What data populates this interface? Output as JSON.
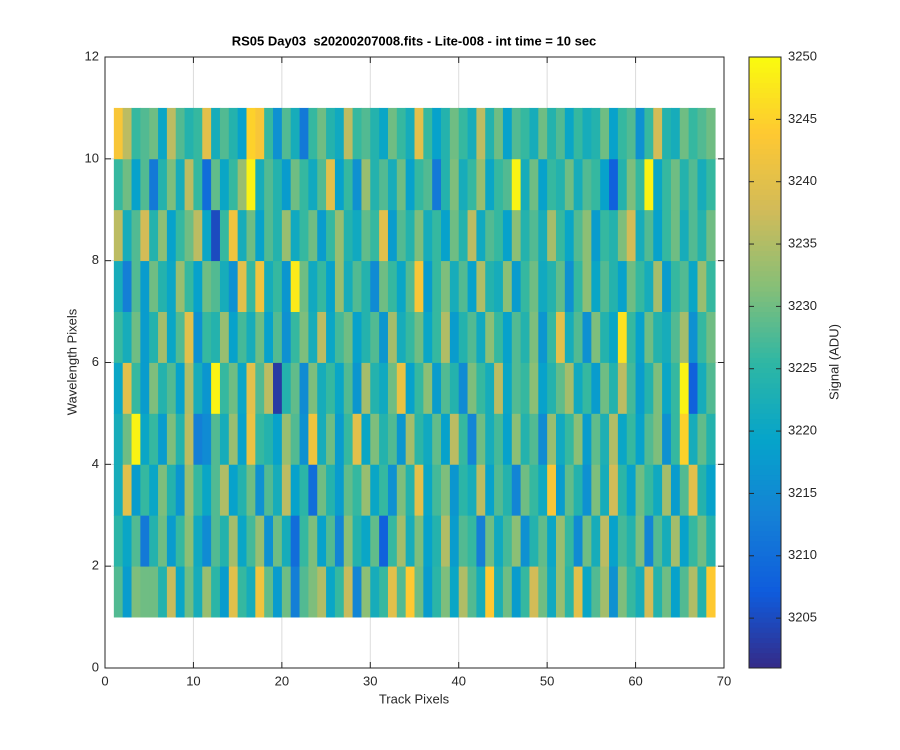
{
  "chart_data": {
    "type": "heatmap",
    "title": "RS05 Day03  s20200207008.fits - Lite-008 - int time = 10 sec",
    "xlabel": "Track Pixels",
    "ylabel": "Wavelength Pixels",
    "colorbar_label": "Signal (ADU)",
    "xlim": [
      0,
      70
    ],
    "xticks": [
      0,
      10,
      20,
      30,
      40,
      50,
      60,
      70
    ],
    "ylim": [
      0,
      12
    ],
    "yticks": [
      0,
      2,
      4,
      6,
      8,
      10,
      12
    ],
    "grid": true,
    "clim": [
      3201,
      3250
    ],
    "cticks": [
      3205,
      3210,
      3215,
      3220,
      3225,
      3230,
      3235,
      3240,
      3245,
      3250
    ],
    "colormap": [
      "#352a87",
      "#0f5cdd",
      "#1481d6",
      "#06a4ca",
      "#2eb7a4",
      "#87bf77",
      "#d1bb59",
      "#fec832",
      "#f9fb0e"
    ],
    "xbins": [
      1,
      2,
      3,
      4,
      5,
      6,
      7,
      8,
      9,
      10,
      11,
      12,
      13,
      14,
      15,
      16,
      17,
      18,
      19,
      20,
      21,
      22,
      23,
      24,
      25,
      26,
      27,
      28,
      29,
      30,
      31,
      32,
      33,
      34,
      35,
      36,
      37,
      38,
      39,
      40,
      41,
      42,
      43,
      44,
      45,
      46,
      47,
      48,
      49,
      50,
      51,
      52,
      53,
      54,
      55,
      56,
      57,
      58,
      59,
      60,
      61,
      62,
      63,
      64,
      65,
      66,
      67,
      68,
      69
    ],
    "ybins": [
      1,
      2,
      3,
      4,
      5,
      6,
      7,
      8,
      9,
      10,
      11
    ],
    "values": [
      [
        3228,
        3218,
        3231,
        3230,
        3230,
        3224,
        3237,
        3220,
        3230,
        3222,
        3233,
        3225,
        3218,
        3240,
        3226,
        3222,
        3242,
        3229,
        3218,
        3230,
        3213,
        3228,
        3231,
        3235,
        3220,
        3226,
        3237,
        3214,
        3232,
        3222,
        3226,
        3240,
        3228,
        3244,
        3230,
        3218,
        3225,
        3231,
        3220,
        3235,
        3228,
        3222,
        3244,
        3223,
        3230,
        3218,
        3226,
        3238,
        3230,
        3221,
        3233,
        3225,
        3240,
        3220,
        3228,
        3234,
        3216,
        3231,
        3226,
        3222,
        3238,
        3224,
        3230,
        3219,
        3228,
        3235,
        3224,
        3244
      ],
      [
        3225,
        3220,
        3228,
        3212,
        3224,
        3230,
        3218,
        3226,
        3232,
        3221,
        3215,
        3228,
        3224,
        3234,
        3220,
        3227,
        3233,
        3216,
        3230,
        3222,
        3210,
        3226,
        3231,
        3219,
        3228,
        3214,
        3232,
        3224,
        3220,
        3229,
        3208,
        3226,
        3234,
        3222,
        3231,
        3219,
        3224,
        3235,
        3218,
        3228,
        3226,
        3213,
        3230,
        3221,
        3227,
        3232,
        3216,
        3224,
        3229,
        3220,
        3233,
        3226,
        3215,
        3230,
        3222,
        3236,
        3219,
        3227,
        3224,
        3231,
        3214,
        3228,
        3222,
        3234,
        3219,
        3226,
        3230,
        3224
      ],
      [
        3222,
        3240,
        3218,
        3226,
        3220,
        3231,
        3224,
        3217,
        3233,
        3226,
        3220,
        3228,
        3235,
        3219,
        3224,
        3230,
        3216,
        3228,
        3222,
        3236,
        3219,
        3225,
        3210,
        3230,
        3224,
        3218,
        3229,
        3226,
        3233,
        3220,
        3226,
        3216,
        3231,
        3224,
        3240,
        3220,
        3227,
        3231,
        3217,
        3225,
        3222,
        3236,
        3219,
        3228,
        3224,
        3214,
        3230,
        3226,
        3221,
        3243,
        3218,
        3229,
        3224,
        3216,
        3231,
        3222,
        3238,
        3225,
        3219,
        3230,
        3226,
        3221,
        3234,
        3218,
        3228,
        3240,
        3224,
        3219
      ],
      [
        3222,
        3230,
        3249,
        3220,
        3226,
        3218,
        3231,
        3224,
        3236,
        3213,
        3215,
        3228,
        3222,
        3233,
        3219,
        3241,
        3226,
        3224,
        3219,
        3233,
        3228,
        3216,
        3242,
        3222,
        3230,
        3218,
        3226,
        3240,
        3220,
        3231,
        3224,
        3228,
        3217,
        3234,
        3225,
        3221,
        3229,
        3219,
        3236,
        3226,
        3214,
        3230,
        3222,
        3227,
        3219,
        3232,
        3224,
        3228,
        3215,
        3233,
        3221,
        3226,
        3232,
        3218,
        3229,
        3223,
        3235,
        3220,
        3226,
        3219,
        3228,
        3231,
        3216,
        3226,
        3245,
        3222,
        3229,
        3224
      ],
      [
        3220,
        3240,
        3226,
        3218,
        3231,
        3224,
        3228,
        3219,
        3235,
        3222,
        3217,
        3249,
        3226,
        3230,
        3220,
        3240,
        3228,
        3236,
        3203,
        3224,
        3229,
        3215,
        3231,
        3222,
        3226,
        3220,
        3228,
        3217,
        3234,
        3224,
        3221,
        3230,
        3241,
        3219,
        3226,
        3232,
        3218,
        3228,
        3224,
        3215,
        3231,
        3226,
        3222,
        3236,
        3220,
        3228,
        3226,
        3232,
        3219,
        3224,
        3229,
        3234,
        3221,
        3226,
        3218,
        3230,
        3224,
        3236,
        3227,
        3218,
        3224,
        3231,
        3220,
        3226,
        3249,
        3208,
        3222,
        3228
      ],
      [
        3226,
        3222,
        3230,
        3218,
        3224,
        3234,
        3220,
        3228,
        3240,
        3216,
        3226,
        3224,
        3233,
        3219,
        3227,
        3222,
        3230,
        3219,
        3228,
        3216,
        3226,
        3231,
        3222,
        3236,
        3220,
        3227,
        3230,
        3219,
        3224,
        3228,
        3217,
        3234,
        3222,
        3226,
        3230,
        3220,
        3226,
        3235,
        3218,
        3224,
        3228,
        3221,
        3232,
        3226,
        3219,
        3228,
        3224,
        3231,
        3217,
        3226,
        3240,
        3222,
        3228,
        3216,
        3231,
        3224,
        3220,
        3247,
        3226,
        3219,
        3230,
        3224,
        3222,
        3228,
        3234,
        3216,
        3226,
        3230
      ],
      [
        3222,
        3213,
        3228,
        3218,
        3230,
        3224,
        3220,
        3233,
        3226,
        3219,
        3230,
        3228,
        3222,
        3216,
        3240,
        3226,
        3242,
        3222,
        3226,
        3217,
        3248,
        3230,
        3221,
        3226,
        3219,
        3233,
        3222,
        3228,
        3224,
        3215,
        3230,
        3226,
        3220,
        3228,
        3243,
        3218,
        3226,
        3231,
        3222,
        3228,
        3219,
        3235,
        3224,
        3222,
        3232,
        3218,
        3226,
        3230,
        3221,
        3224,
        3229,
        3216,
        3226,
        3232,
        3220,
        3228,
        3224,
        3219,
        3230,
        3226,
        3222,
        3234,
        3218,
        3226,
        3228,
        3220,
        3233,
        3226
      ],
      [
        3236,
        3222,
        3228,
        3238,
        3224,
        3232,
        3219,
        3226,
        3230,
        3236,
        3220,
        3205,
        3226,
        3242,
        3222,
        3230,
        3219,
        3228,
        3224,
        3233,
        3221,
        3226,
        3230,
        3218,
        3226,
        3233,
        3224,
        3221,
        3229,
        3226,
        3240,
        3218,
        3228,
        3224,
        3231,
        3222,
        3226,
        3219,
        3230,
        3224,
        3236,
        3221,
        3228,
        3226,
        3219,
        3232,
        3224,
        3228,
        3222,
        3234,
        3226,
        3220,
        3228,
        3232,
        3218,
        3226,
        3224,
        3231,
        3238,
        3222,
        3228,
        3219,
        3226,
        3230,
        3222,
        3228,
        3224,
        3230
      ],
      [
        3226,
        3230,
        3219,
        3228,
        3212,
        3224,
        3231,
        3222,
        3236,
        3226,
        3210,
        3229,
        3220,
        3226,
        3233,
        3249,
        3222,
        3228,
        3224,
        3218,
        3230,
        3226,
        3221,
        3228,
        3240,
        3219,
        3226,
        3216,
        3233,
        3224,
        3228,
        3222,
        3230,
        3219,
        3226,
        3228,
        3212,
        3224,
        3231,
        3222,
        3226,
        3233,
        3220,
        3226,
        3228,
        3249,
        3222,
        3230,
        3219,
        3226,
        3224,
        3230,
        3222,
        3228,
        3226,
        3219,
        3208,
        3224,
        3231,
        3226,
        3249,
        3220,
        3226,
        3230,
        3224,
        3228,
        3222,
        3226
      ],
      [
        3243,
        3236,
        3226,
        3228,
        3230,
        3220,
        3236,
        3228,
        3224,
        3226,
        3240,
        3222,
        3228,
        3224,
        3219,
        3245,
        3243,
        3226,
        3216,
        3228,
        3222,
        3212,
        3226,
        3230,
        3224,
        3221,
        3236,
        3226,
        3228,
        3224,
        3220,
        3230,
        3226,
        3222,
        3240,
        3226,
        3219,
        3224,
        3230,
        3226,
        3222,
        3236,
        3224,
        3230,
        3219,
        3228,
        3226,
        3222,
        3230,
        3224,
        3228,
        3220,
        3226,
        3222,
        3224,
        3230,
        3219,
        3226,
        3228,
        3216,
        3226,
        3238,
        3224,
        3222,
        3230,
        3226,
        3228,
        3230
      ]
    ]
  }
}
